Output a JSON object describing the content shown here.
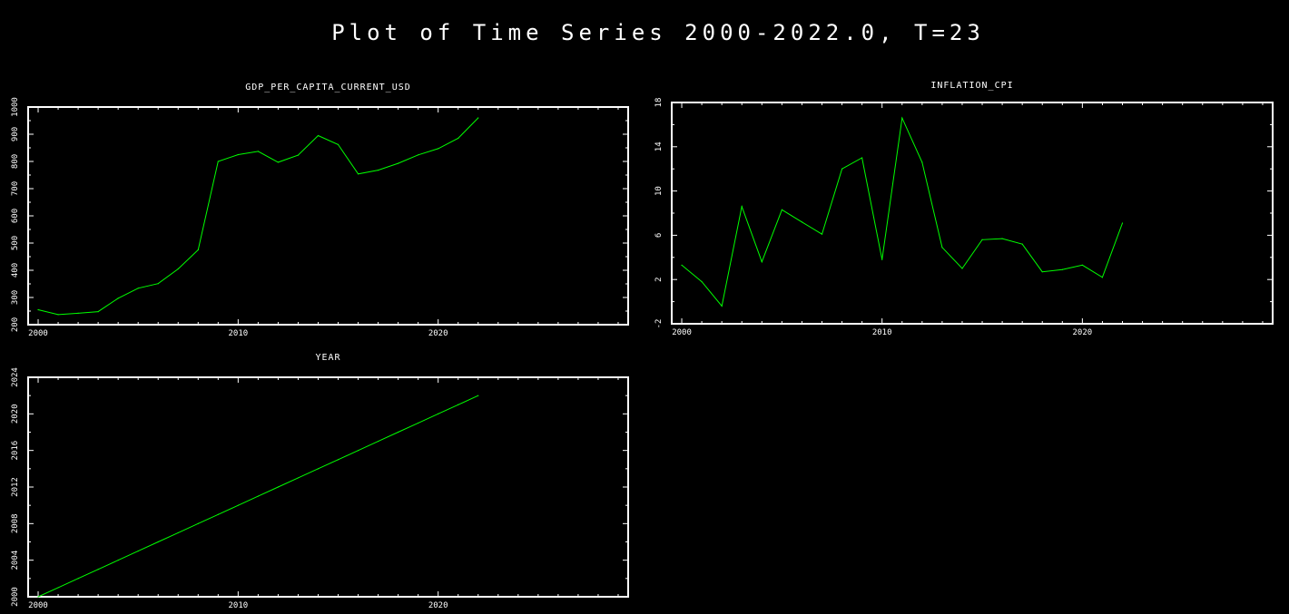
{
  "title": "Plot of Time Series 2000-2022.0, T=23",
  "colors": {
    "background": "#000000",
    "axes": "#ffffff",
    "series": "#00ff00",
    "text": "#ffffff"
  },
  "chart_data": [
    {
      "type": "line",
      "title": "GDP_PER_CAPITA_CURRENT_USD",
      "xlim": [
        1999.5,
        2029.5
      ],
      "ylim": [
        200,
        1000
      ],
      "xticks": [
        2000,
        2010,
        2020
      ],
      "yticks": [
        200,
        300,
        400,
        500,
        600,
        700,
        800,
        900,
        1000
      ],
      "grid": false,
      "x": [
        2000,
        2001,
        2002,
        2003,
        2004,
        2005,
        2006,
        2007,
        2008,
        2009,
        2010,
        2011,
        2012,
        2013,
        2014,
        2015,
        2016,
        2017,
        2018,
        2019,
        2020,
        2021,
        2022
      ],
      "values": [
        255,
        237,
        242,
        248,
        297,
        334,
        351,
        405,
        475,
        800,
        825,
        837,
        797,
        823,
        895,
        862,
        754,
        768,
        793,
        824,
        847,
        885,
        960
      ]
    },
    {
      "type": "line",
      "title": "INFLATION_CPI",
      "xlim": [
        1999.5,
        2029.5
      ],
      "ylim": [
        -2,
        18
      ],
      "xticks": [
        2000,
        2010,
        2020
      ],
      "yticks": [
        -2,
        2,
        6,
        10,
        14,
        18
      ],
      "grid": false,
      "x": [
        2000,
        2001,
        2002,
        2003,
        2004,
        2005,
        2006,
        2007,
        2008,
        2009,
        2010,
        2011,
        2012,
        2013,
        2014,
        2015,
        2016,
        2017,
        2018,
        2019,
        2020,
        2021,
        2022
      ],
      "values": [
        3.3,
        1.8,
        -0.4,
        8.6,
        3.6,
        8.3,
        7.2,
        6.1,
        12.0,
        13.0,
        3.8,
        16.6,
        12.6,
        4.9,
        3.0,
        5.6,
        5.7,
        5.2,
        2.7,
        2.9,
        3.3,
        2.2,
        7.1
      ]
    },
    {
      "type": "line",
      "title": "YEAR",
      "xlim": [
        1999.5,
        2029.5
      ],
      "ylim": [
        2000,
        2024
      ],
      "xticks": [
        2000,
        2010,
        2020
      ],
      "yticks": [
        2000,
        2004,
        2008,
        2012,
        2016,
        2020,
        2024
      ],
      "grid": false,
      "x": [
        2000,
        2001,
        2002,
        2003,
        2004,
        2005,
        2006,
        2007,
        2008,
        2009,
        2010,
        2011,
        2012,
        2013,
        2014,
        2015,
        2016,
        2017,
        2018,
        2019,
        2020,
        2021,
        2022
      ],
      "values": [
        2000,
        2001,
        2002,
        2003,
        2004,
        2005,
        2006,
        2007,
        2008,
        2009,
        2010,
        2011,
        2012,
        2013,
        2014,
        2015,
        2016,
        2017,
        2018,
        2019,
        2020,
        2021,
        2022
      ]
    }
  ]
}
